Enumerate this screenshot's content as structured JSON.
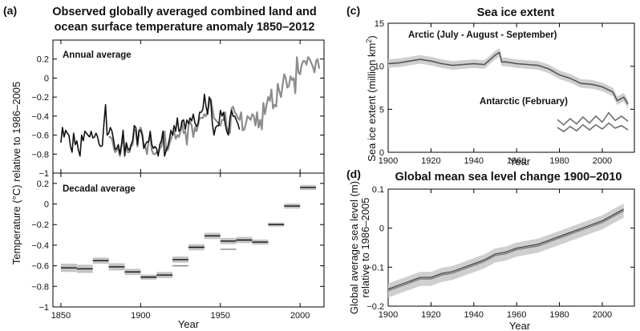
{
  "panel_labels": [
    "(a)",
    "(c)",
    "(d)"
  ],
  "chart_data": [
    {
      "id": "a_annual",
      "type": "line",
      "panel": "(a)",
      "title": "Observed globally averaged combined land and ocean surface temperature anomaly 1850–2012",
      "title_lines": [
        "Observed globally averaged combined land and",
        "ocean surface temperature anomaly 1850–2012"
      ],
      "inner_label": "Annual average",
      "ylabel": "Temperature (°C) relative to 1986–2005",
      "xlim": [
        1845,
        2015
      ],
      "ylim": [
        -1.0,
        0.4
      ],
      "yticks": [
        -1,
        -0.8,
        -0.6,
        -0.4,
        -0.2,
        0,
        0.2
      ],
      "yticklabels": [
        "−1",
        "−0.8",
        "−0.6",
        "−0.4",
        "−0.2",
        "0",
        "0.2"
      ],
      "colors": {
        "dark": "#111111",
        "grey": "#8c8c8c"
      },
      "series": [
        {
          "color": "dark",
          "start": 1850,
          "values": [
            -0.68,
            -0.52,
            -0.62,
            -0.55,
            -0.58,
            -0.6,
            -0.72,
            -0.78,
            -0.58,
            -0.7,
            -0.66,
            -0.76,
            -0.82,
            -0.6,
            -0.66,
            -0.56,
            -0.58,
            -0.6,
            -0.62,
            -0.56,
            -0.63,
            -0.62,
            -0.58,
            -0.62,
            -0.7,
            -0.72,
            -0.71,
            -0.48,
            -0.28,
            -0.6,
            -0.58,
            -0.52,
            -0.56,
            -0.65,
            -0.75,
            -0.74,
            -0.7,
            -0.8,
            -0.7,
            -0.55,
            -0.82,
            -0.68,
            -0.74,
            -0.76,
            -0.7,
            -0.66,
            -0.5,
            -0.52,
            -0.7,
            -0.55,
            -0.55,
            -0.6,
            -0.74,
            -0.7,
            -0.67,
            -0.67,
            -0.56,
            -0.7,
            -0.74,
            -0.72,
            -0.74,
            -0.82,
            -0.7,
            -0.66,
            -0.56,
            -0.82,
            -0.76,
            -0.72,
            -0.65,
            -0.55,
            -0.6,
            -0.5,
            -0.56,
            -0.42,
            -0.56,
            -0.54,
            -0.45,
            -0.44,
            -0.54,
            -0.44,
            -0.48,
            -0.42,
            -0.45,
            -0.38,
            -0.47,
            -0.51,
            -0.48,
            -0.36,
            -0.36,
            -0.33,
            -0.17,
            -0.3,
            -0.38,
            -0.2,
            -0.24,
            -0.48,
            -0.6,
            -0.52,
            -0.5,
            -0.5,
            -0.34,
            -0.4,
            -0.36,
            -0.48,
            -0.56,
            -0.6,
            -0.42,
            -0.34,
            -0.4,
            -0.4,
            -0.44,
            -0.48,
            -0.54
          ]
        },
        {
          "color": "grey",
          "start": 1880,
          "values": [
            -0.62,
            -0.62,
            -0.64,
            -0.72,
            -0.78,
            -0.76,
            -0.74,
            -0.82,
            -0.72,
            -0.6,
            -0.78,
            -0.72,
            -0.78,
            -0.78,
            -0.72,
            -0.7,
            -0.54,
            -0.55,
            -0.72,
            -0.56,
            -0.52,
            -0.58,
            -0.7,
            -0.72,
            -0.8,
            -0.66,
            -0.6,
            -0.76,
            -0.8,
            -0.8,
            -0.78,
            -0.8,
            -0.74,
            -0.72,
            -0.6,
            -0.56,
            -0.76,
            -0.76,
            -0.7,
            -0.64,
            -0.6,
            -0.56,
            -0.64,
            -0.6,
            -0.62,
            -0.56,
            -0.46,
            -0.58,
            -0.56,
            -0.7,
            -0.5,
            -0.46,
            -0.5,
            -0.62,
            -0.52,
            -0.56,
            -0.5,
            -0.42,
            -0.42,
            -0.42,
            -0.38,
            -0.4,
            -0.35,
            -0.26,
            -0.22,
            -0.32,
            -0.42,
            -0.44,
            -0.46,
            -0.48,
            -0.5,
            -0.44,
            -0.44,
            -0.36,
            -0.52,
            -0.56,
            -0.58,
            -0.32,
            -0.3,
            -0.36,
            -0.38,
            -0.42,
            -0.44,
            -0.36,
            -0.55,
            -0.54,
            -0.48,
            -0.4,
            -0.42,
            -0.44,
            -0.38,
            -0.4,
            -0.5,
            -0.36,
            -0.52,
            -0.44,
            -0.54,
            -0.26,
            -0.38,
            -0.28,
            -0.2,
            -0.24,
            -0.12,
            -0.32,
            -0.28,
            -0.3,
            -0.06,
            -0.14,
            -0.2,
            -0.08,
            0.04,
            0.0,
            -0.1,
            -0.08,
            0.02,
            -0.02,
            0.0,
            -0.16,
            0.22,
            0.06,
            0.04,
            0.14,
            0.18,
            0.18,
            0.14,
            0.22,
            0.2,
            0.16,
            0.12,
            0.06,
            0.18,
            0.2,
            0.1
          ]
        }
      ]
    },
    {
      "id": "a_decadal",
      "type": "bar",
      "panel": "(a)",
      "inner_label": "Decadal average",
      "xlabel": "Year",
      "xlim": [
        1845,
        2015
      ],
      "ylim": [
        -1.0,
        0.3
      ],
      "xticks": [
        1850,
        1900,
        1950,
        2000
      ],
      "yticks": [
        -1,
        -0.8,
        -0.6,
        -0.4,
        -0.2,
        0,
        0.2
      ],
      "yticklabels": [
        "−1",
        "−0.8",
        "−0.6",
        "−0.4",
        "−0.2",
        "0",
        "0.2"
      ],
      "decades": [
        {
          "x0": 1850,
          "x1": 1860,
          "values": [
            -0.62
          ],
          "unc": 0.04
        },
        {
          "x0": 1860,
          "x1": 1870,
          "values": [
            -0.63
          ],
          "unc": 0.04
        },
        {
          "x0": 1870,
          "x1": 1880,
          "values": [
            -0.55
          ],
          "unc": 0.03
        },
        {
          "x0": 1880,
          "x1": 1890,
          "values": [
            -0.61
          ],
          "unc": 0.035
        },
        {
          "x0": 1890,
          "x1": 1900,
          "values": [
            -0.66
          ],
          "unc": 0.03
        },
        {
          "x0": 1900,
          "x1": 1910,
          "values": [
            -0.71
          ],
          "unc": 0.025
        },
        {
          "x0": 1910,
          "x1": 1920,
          "values": [
            -0.69
          ],
          "unc": 0.03
        },
        {
          "x0": 1920,
          "x1": 1930,
          "values": [
            -0.54,
            -0.6
          ],
          "unc": 0.03
        },
        {
          "x0": 1930,
          "x1": 1940,
          "values": [
            -0.42
          ],
          "unc": 0.03
        },
        {
          "x0": 1940,
          "x1": 1950,
          "values": [
            -0.31
          ],
          "unc": 0.03
        },
        {
          "x0": 1950,
          "x1": 1960,
          "values": [
            -0.36,
            -0.44
          ],
          "unc": 0.03
        },
        {
          "x0": 1960,
          "x1": 1970,
          "values": [
            -0.35
          ],
          "unc": 0.03
        },
        {
          "x0": 1970,
          "x1": 1980,
          "values": [
            -0.37
          ],
          "unc": 0.025
        },
        {
          "x0": 1980,
          "x1": 1990,
          "values": [
            -0.2
          ],
          "unc": 0.02
        },
        {
          "x0": 1990,
          "x1": 2000,
          "values": [
            -0.02
          ],
          "unc": 0.025
        },
        {
          "x0": 2000,
          "x1": 2010,
          "values": [
            0.16
          ],
          "unc": 0.025
        }
      ]
    },
    {
      "id": "c",
      "type": "line",
      "panel": "(c)",
      "title": "Sea ice extent",
      "xlabel": "Year",
      "ylabel_html": "Sea ice extent (million km²)",
      "ylabel_main": "Sea ice extent (million km",
      "ylabel_sup": "2",
      "ylabel_end": ")",
      "xlim": [
        1900,
        2015
      ],
      "ylim": [
        0,
        15
      ],
      "xticks": [
        1900,
        1920,
        1940,
        1960,
        1980,
        2000
      ],
      "yticks": [
        0,
        5,
        10,
        15
      ],
      "labels": {
        "arctic": "Arctic (July - August - September)",
        "antarctic": "Antarctic (February)"
      },
      "series": [
        {
          "name": "Arctic",
          "x": [
            1900,
            1905,
            1910,
            1915,
            1920,
            1925,
            1930,
            1935,
            1940,
            1945,
            1950,
            1952,
            1953,
            1955,
            1960,
            1965,
            1970,
            1975,
            1980,
            1985,
            1990,
            1995,
            2000,
            2005,
            2007,
            2010,
            2012
          ],
          "values": [
            10.3,
            10.4,
            10.6,
            10.8,
            10.6,
            10.3,
            10.1,
            10.2,
            10.3,
            10.2,
            11.3,
            11.6,
            10.5,
            10.5,
            10.3,
            10.2,
            10.1,
            9.7,
            9.0,
            8.6,
            8.0,
            7.9,
            7.6,
            7.0,
            6.0,
            6.4,
            5.6
          ],
          "band": 0.5
        },
        {
          "name": "Antarctic",
          "x": [
            1979,
            1982,
            1985,
            1988,
            1991,
            1994,
            1997,
            2000,
            2003,
            2006,
            2009,
            2012
          ],
          "values": [
            3.8,
            3.2,
            3.9,
            3.3,
            4.1,
            3.4,
            4.2,
            3.5,
            4.6,
            3.7,
            4.2,
            3.6
          ]
        },
        {
          "name": "Antarctic",
          "x": [
            1979,
            1982,
            1985,
            1988,
            1991,
            1994,
            1997,
            2000,
            2003,
            2006,
            2009,
            2012
          ],
          "values": [
            2.9,
            2.4,
            3.0,
            2.5,
            3.2,
            2.6,
            3.2,
            2.7,
            3.4,
            2.8,
            3.1,
            2.6
          ]
        }
      ]
    },
    {
      "id": "d",
      "type": "line",
      "panel": "(d)",
      "title": "Global mean sea level change 1900–2010",
      "xlabel": "Year",
      "ylabel_lines": [
        "Global average sea level (m)",
        "relative to 1986–2005"
      ],
      "xlim": [
        1900,
        2015
      ],
      "ylim": [
        -0.2,
        0.1
      ],
      "xticks": [
        1900,
        1920,
        1940,
        1960,
        1980,
        2000
      ],
      "yticks": [
        -0.2,
        -0.1,
        0,
        0.1
      ],
      "yticklabels": [
        "−0.2",
        "−0.1",
        "0",
        "0.1"
      ],
      "series": [
        {
          "x": [
            1900,
            1905,
            1910,
            1915,
            1920,
            1925,
            1930,
            1935,
            1940,
            1945,
            1950,
            1955,
            1960,
            1965,
            1970,
            1975,
            1980,
            1985,
            1990,
            1995,
            2000,
            2005,
            2010
          ],
          "values": [
            -0.16,
            -0.15,
            -0.14,
            -0.13,
            -0.13,
            -0.12,
            -0.115,
            -0.105,
            -0.095,
            -0.085,
            -0.07,
            -0.065,
            -0.055,
            -0.05,
            -0.045,
            -0.035,
            -0.025,
            -0.015,
            -0.005,
            0.005,
            0.015,
            0.03,
            0.045
          ],
          "band": 0.018
        }
      ]
    }
  ]
}
